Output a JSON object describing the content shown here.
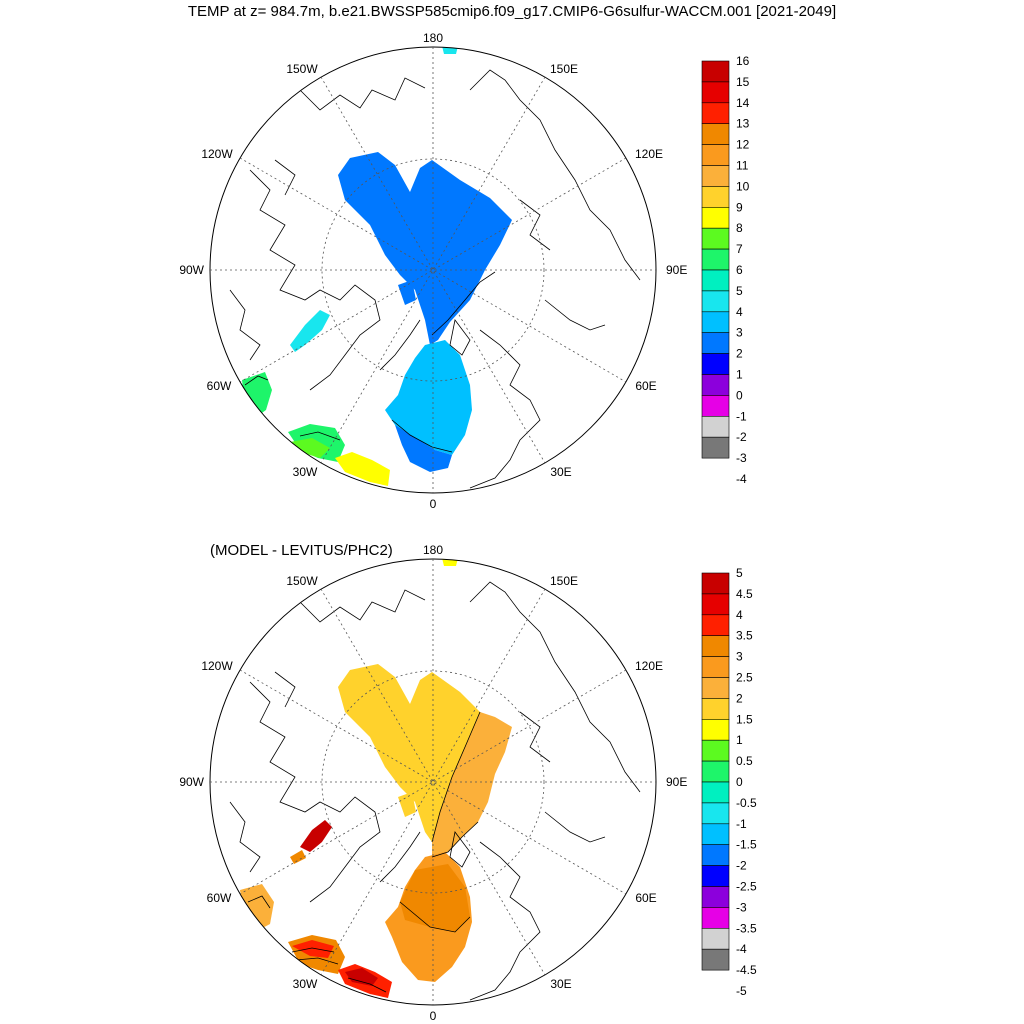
{
  "title": "TEMP at z= 984.7m, b.e21.BWSSP585cmip6.f09_g17.CMIP6-G6sulfur-WACCM.001 [2021-2049]",
  "subtitle": "(MODEL - LEVITUS/PHC2)",
  "longitude_labels": {
    "top": "180",
    "bottom": "0",
    "left": "90W",
    "right": "90E",
    "ul1": "150W",
    "ul2": "120W",
    "ll1": "60W",
    "ll2": "30W",
    "ur1": "150E",
    "ur2": "120E",
    "lr1": "60E",
    "lr2": "30E"
  },
  "panel1": {
    "name": "model-temperature-map",
    "colorbar": {
      "labels": [
        "16",
        "15",
        "14",
        "13",
        "12",
        "11",
        "10",
        "9",
        "8",
        "7",
        "6",
        "5",
        "4",
        "3",
        "2",
        "1",
        "0",
        "-1",
        "-2",
        "-3",
        "-4"
      ],
      "colors": [
        "#c80000",
        "#e60000",
        "#ff2000",
        "#f08800",
        "#fa9a1e",
        "#fbb03a",
        "#ffd22c",
        "#ffff00",
        "#5cfa20",
        "#1ef56a",
        "#00f0c0",
        "#18e6ee",
        "#00c0ff",
        "#0078ff",
        "#0000ff",
        "#8c00dc",
        "#e600e6",
        "#d2d2d2",
        "#787878"
      ]
    },
    "regions": {
      "arctic_basin": "#0078ff",
      "nordic_seas": "#00c0ff",
      "nordic_south_edge": "#0078ff",
      "baffin_bay": "#18e6ee",
      "labrador_sea": "#1ef56a",
      "irminger_sea": "#1ef56a",
      "irminger_south": "#5cfa20",
      "north_atlantic_east": "#ffff00",
      "pacific_sliver": "#18e6ee"
    }
  },
  "panel2": {
    "name": "model-minus-levitus-map",
    "colorbar": {
      "labels": [
        "5",
        "4.5",
        "4",
        "3.5",
        "3",
        "2.5",
        "2",
        "1.5",
        "1",
        "0.5",
        "0",
        "-0.5",
        "-1",
        "-1.5",
        "-2",
        "-2.5",
        "-3",
        "-3.5",
        "-4",
        "-4.5",
        "-5"
      ],
      "colors": [
        "#c80000",
        "#e60000",
        "#ff2000",
        "#f08800",
        "#fa9a1e",
        "#fbb03a",
        "#ffd22c",
        "#ffff00",
        "#5cfa20",
        "#1ef56a",
        "#00f0c0",
        "#18e6ee",
        "#00c0ff",
        "#0078ff",
        "#0000ff",
        "#8c00dc",
        "#e600e6",
        "#d2d2d2",
        "#787878"
      ]
    },
    "regions": {
      "arctic_basin": "#ffd22c",
      "eurasian_basin": "#fbb03a",
      "nordic_seas": "#fa9a1e",
      "nordic_core": "#f08800",
      "baffin_bay": "#c80000",
      "baffin_edge": "#f08800",
      "labrador_sea": "#fbb03a",
      "irminger_sea": "#f08800",
      "irminger_core": "#ff2000",
      "north_atlantic_east": "#ff2000",
      "north_atlantic_core": "#c80000",
      "pacific_sliver": "#ffff00"
    }
  }
}
